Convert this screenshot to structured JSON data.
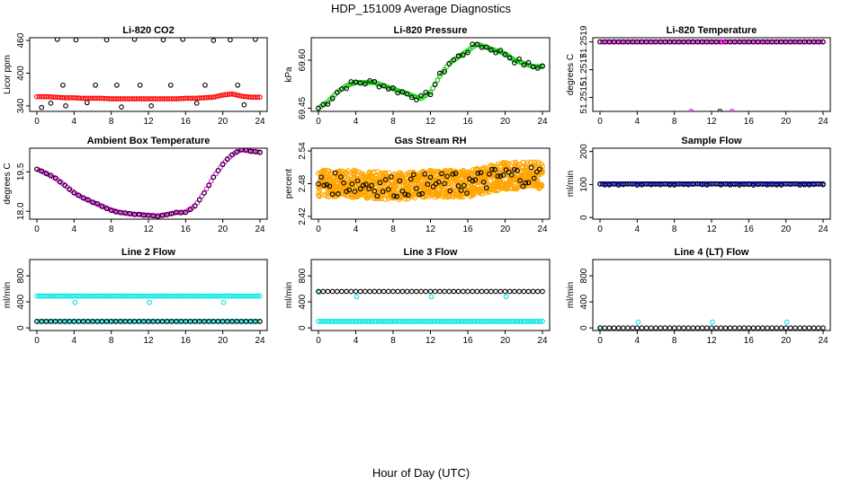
{
  "figure": {
    "title": "HDP_151009  Average Diagnostics",
    "xlabel": "Hour of Day (UTC)"
  },
  "chart_data": [
    {
      "type": "scatter",
      "title": "Li-820 CO2",
      "ylabel": "Licor ppm",
      "xlim": [
        0,
        24
      ],
      "xticks": [
        0,
        4,
        8,
        12,
        16,
        20,
        24
      ],
      "ylim": [
        330,
        465
      ],
      "yticks": [
        340,
        400,
        460
      ],
      "series": [
        {
          "color": "#000000",
          "shape": "ring",
          "pattern": "co2_black",
          "x": [
            0.5,
            1.5,
            2.2,
            3.1,
            4.2,
            5.4,
            7.5,
            9.1,
            10.5,
            12.3,
            13.6,
            15.7,
            17.2,
            19.0,
            20.8,
            22.3,
            23.5,
            2.8,
            6.3,
            8.6,
            11.1,
            14.4,
            18.1,
            21.6
          ],
          "y": [
            337,
            345,
            462,
            340,
            461,
            346,
            461,
            338,
            462,
            340,
            461,
            462,
            345,
            460,
            461,
            342,
            462,
            378,
            378,
            378,
            378,
            378,
            378,
            378
          ]
        },
        {
          "color": "#ff0000",
          "shape": "ring",
          "pattern": "dense",
          "x": [
            0,
            1,
            2,
            3,
            4,
            5,
            6,
            7,
            8,
            9,
            10,
            11,
            12,
            13,
            14,
            15,
            16,
            17,
            18,
            19,
            20,
            21,
            22,
            23,
            24
          ],
          "y": [
            357,
            357,
            356,
            355,
            355,
            354,
            354,
            354,
            353,
            353,
            353,
            353,
            353,
            353,
            353,
            353,
            354,
            354,
            355,
            356,
            360,
            362,
            358,
            356,
            356
          ]
        }
      ]
    },
    {
      "type": "scatter",
      "title": "Li-820 Pressure",
      "ylabel": "kPa",
      "xlim": [
        0,
        24
      ],
      "xticks": [
        0,
        4,
        8,
        12,
        16,
        20,
        24
      ],
      "ylim": [
        69.44,
        69.67
      ],
      "yticks": [
        69.45,
        69.6
      ],
      "yticklabels": [
        "69.45",
        "69.60"
      ],
      "series": [
        {
          "color": "#00cc00",
          "shape": "ring",
          "pattern": "dense",
          "x": [
            0,
            1,
            2,
            3,
            4,
            5,
            6,
            7,
            8,
            9,
            10,
            11,
            12,
            13,
            14,
            15,
            16,
            17,
            18,
            19,
            20,
            21,
            22,
            23,
            24
          ],
          "y": [
            69.45,
            69.47,
            69.5,
            69.52,
            69.53,
            69.53,
            69.53,
            69.52,
            69.51,
            69.5,
            69.49,
            69.48,
            69.5,
            69.55,
            69.59,
            69.61,
            69.63,
            69.65,
            69.64,
            69.63,
            69.62,
            69.6,
            69.59,
            69.58,
            69.58
          ]
        },
        {
          "color": "#000000",
          "shape": "ring",
          "pattern": "sparse_on_line",
          "jitter": 0.01,
          "x": [
            0,
            1,
            2,
            3,
            4,
            5,
            6,
            7,
            8,
            9,
            10,
            11,
            12,
            13,
            14,
            15,
            16,
            17,
            18,
            19,
            20,
            21,
            22,
            23,
            24
          ],
          "y": [
            69.45,
            69.47,
            69.5,
            69.52,
            69.53,
            69.53,
            69.53,
            69.52,
            69.51,
            69.5,
            69.49,
            69.48,
            69.5,
            69.55,
            69.59,
            69.61,
            69.63,
            69.65,
            69.64,
            69.63,
            69.62,
            69.6,
            69.59,
            69.58,
            69.58
          ]
        }
      ]
    },
    {
      "type": "scatter",
      "title": "Li-820 Temperature",
      "ylabel": "degrees C",
      "xlim": [
        0,
        24
      ],
      "xticks": [
        0,
        4,
        8,
        12,
        16,
        20,
        24
      ],
      "ylim": [
        51.2514,
        51.25193
      ],
      "yticks": [
        51.2515,
        51.2517,
        51.2519
      ],
      "yticklabels": [
        "51.2515",
        "51.2517",
        "51.2519"
      ],
      "series": [
        {
          "color": "#ff00ff",
          "shape": "ring",
          "pattern": "dense",
          "x": [
            0,
            24
          ],
          "y": [
            51.2519,
            51.2519
          ]
        },
        {
          "color": "#000000",
          "shape": "ring",
          "pattern": "sparse_on_line",
          "jitter": 0,
          "x": [
            0,
            24
          ],
          "y": [
            51.2519,
            51.2519
          ]
        },
        {
          "color": "#ff00ff",
          "shape": "ring",
          "pattern": "points",
          "x": [
            9.8,
            14.2,
            13.1
          ],
          "y": [
            51.2514,
            51.2514,
            51.2519
          ]
        },
        {
          "color": "#000000",
          "shape": "ring",
          "pattern": "points",
          "x": [
            12.9
          ],
          "y": [
            51.2514
          ]
        }
      ]
    },
    {
      "type": "scatter",
      "title": "Ambient Box Temperature",
      "ylabel": "degrees C",
      "xlim": [
        0,
        24
      ],
      "xticks": [
        0,
        4,
        8,
        12,
        16,
        20,
        24
      ],
      "ylim": [
        17.7,
        20.4
      ],
      "yticks": [
        18.0,
        19.5
      ],
      "yticklabels": [
        "18.0",
        "19.5"
      ],
      "series": [
        {
          "color": "#ff00ff",
          "shape": "ring",
          "pattern": "dense",
          "x": [
            0,
            1,
            2,
            3,
            4,
            5,
            6,
            7,
            8,
            9,
            10,
            11,
            12,
            13,
            14,
            15,
            16,
            17,
            18,
            19,
            20,
            21,
            22,
            23,
            24
          ],
          "y": [
            19.6,
            19.45,
            19.25,
            19.0,
            18.7,
            18.5,
            18.35,
            18.2,
            18.05,
            17.95,
            17.9,
            17.88,
            17.85,
            17.82,
            17.88,
            17.95,
            17.97,
            18.2,
            18.7,
            19.3,
            19.8,
            20.15,
            20.35,
            20.28,
            20.25
          ]
        },
        {
          "color": "#000000",
          "shape": "ring",
          "pattern": "sparse_on_line",
          "jitter": 0.02,
          "x": [
            0,
            1,
            2,
            3,
            4,
            5,
            6,
            7,
            8,
            9,
            10,
            11,
            12,
            13,
            14,
            15,
            16,
            17,
            18,
            19,
            20,
            21,
            22,
            23,
            24
          ],
          "y": [
            19.6,
            19.45,
            19.25,
            19.0,
            18.7,
            18.5,
            18.35,
            18.2,
            18.05,
            17.95,
            17.9,
            17.88,
            17.85,
            17.82,
            17.88,
            17.95,
            17.97,
            18.2,
            18.7,
            19.3,
            19.8,
            20.15,
            20.35,
            20.28,
            20.25
          ]
        }
      ]
    },
    {
      "type": "scatter",
      "title": "Gas Stream RH",
      "ylabel": "percent",
      "xlim": [
        0,
        24
      ],
      "xticks": [
        0,
        4,
        8,
        12,
        16,
        20,
        24
      ],
      "ylim": [
        2.415,
        2.545
      ],
      "yticks": [
        2.42,
        2.48,
        2.54
      ],
      "yticklabels": [
        "2.42",
        "2.48",
        "2.54"
      ],
      "series": [
        {
          "color": "#ffa500",
          "shape": "ring",
          "pattern": "cloud",
          "spread": 0.025,
          "x": [
            0,
            4,
            8,
            12,
            16,
            20,
            24
          ],
          "y": [
            2.48,
            2.48,
            2.475,
            2.48,
            2.48,
            2.495,
            2.495
          ]
        },
        {
          "color": "#000000",
          "shape": "ring",
          "pattern": "cloud_sparse",
          "spread": 0.02,
          "x": [
            0,
            4,
            8,
            12,
            16,
            20,
            24
          ],
          "y": [
            2.48,
            2.48,
            2.475,
            2.48,
            2.48,
            2.495,
            2.495
          ]
        }
      ]
    },
    {
      "type": "scatter",
      "title": "Sample Flow",
      "ylabel": "ml/min",
      "xlim": [
        0,
        24
      ],
      "xticks": [
        0,
        4,
        8,
        12,
        16,
        20,
        24
      ],
      "ylim": [
        -5,
        210
      ],
      "yticks": [
        0,
        100,
        200
      ],
      "series": [
        {
          "color": "#0000cc",
          "shape": "ring",
          "pattern": "dense",
          "x": [
            0,
            24
          ],
          "y": [
            102,
            102
          ]
        },
        {
          "color": "#000000",
          "shape": "ring",
          "pattern": "sparse_on_line",
          "jitter": 2,
          "x": [
            0,
            24
          ],
          "y": [
            100,
            100
          ]
        }
      ]
    },
    {
      "type": "scatter",
      "title": "Line 2 Flow",
      "ylabel": "ml/min",
      "xlim": [
        0,
        24
      ],
      "xticks": [
        0,
        4,
        8,
        12,
        16,
        20,
        24
      ],
      "ylim": [
        -40,
        1050
      ],
      "yticks": [
        0,
        400,
        800
      ],
      "series": [
        {
          "color": "#00e5e5",
          "shape": "ring",
          "pattern": "dense",
          "x": [
            0,
            24
          ],
          "y": [
            490,
            490
          ]
        },
        {
          "color": "#00e5e5",
          "shape": "ring",
          "pattern": "points",
          "x": [
            4.1,
            12.1,
            20.1
          ],
          "y": [
            390,
            390,
            390
          ]
        },
        {
          "color": "#00e5e5",
          "shape": "ring",
          "pattern": "dense",
          "x": [
            0,
            24
          ],
          "y": [
            100,
            100
          ]
        },
        {
          "color": "#000000",
          "shape": "ring",
          "pattern": "sparse_on_line",
          "jitter": 0,
          "x": [
            0,
            24
          ],
          "y": [
            100,
            100
          ]
        }
      ]
    },
    {
      "type": "scatter",
      "title": "Line 3 Flow",
      "ylabel": "ml/min",
      "xlim": [
        0,
        24
      ],
      "xticks": [
        0,
        4,
        8,
        12,
        16,
        20,
        24
      ],
      "ylim": [
        -40,
        1050
      ],
      "yticks": [
        0,
        400,
        800
      ],
      "series": [
        {
          "color": "#00e5e5",
          "shape": "ring",
          "pattern": "points",
          "x": [
            0.1,
            4.1,
            12.1,
            20.1
          ],
          "y": [
            550,
            480,
            480,
            480
          ]
        },
        {
          "color": "#000000",
          "shape": "ring",
          "pattern": "sparse_on_line",
          "jitter": 0,
          "x": [
            0,
            24
          ],
          "y": [
            560,
            560
          ]
        },
        {
          "color": "#00e5e5",
          "shape": "ring",
          "pattern": "dense",
          "x": [
            0,
            24
          ],
          "y": [
            100,
            100
          ]
        }
      ]
    },
    {
      "type": "scatter",
      "title": "Line 4 (LT) Flow",
      "ylabel": "ml/min",
      "xlim": [
        0,
        24
      ],
      "xticks": [
        0,
        4,
        8,
        12,
        16,
        20,
        24
      ],
      "ylim": [
        -40,
        1050
      ],
      "yticks": [
        0,
        400,
        800
      ],
      "series": [
        {
          "color": "#00e5e5",
          "shape": "ring",
          "pattern": "points",
          "x": [
            0.1,
            4.1,
            12.1,
            20.1
          ],
          "y": [
            0,
            90,
            90,
            90
          ]
        },
        {
          "color": "#000000",
          "shape": "ring",
          "pattern": "sparse_on_line",
          "jitter": 0,
          "x": [
            0,
            24
          ],
          "y": [
            0,
            0
          ]
        }
      ]
    }
  ]
}
